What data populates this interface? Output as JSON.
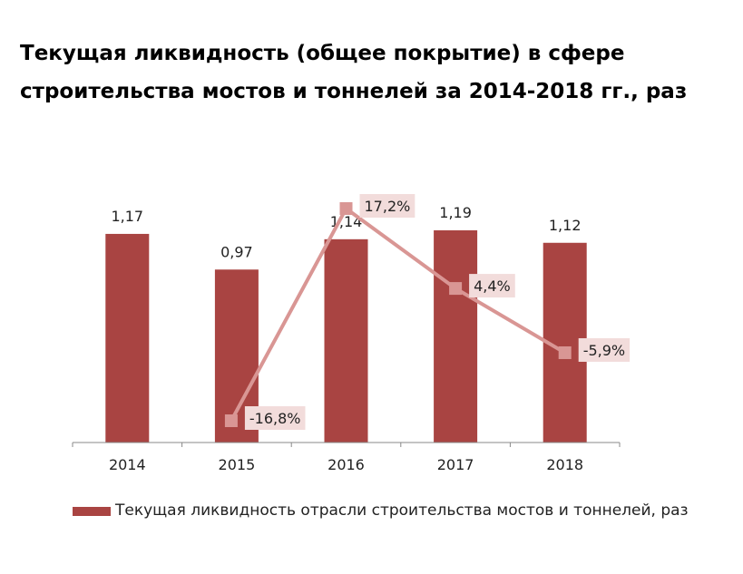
{
  "title": "Текущая ликвидность (общее покрытие) в сфере строительства мостов и тоннелей за 2014-2018 гг., раз",
  "chart_data": {
    "type": "bar",
    "categories": [
      "2014",
      "2015",
      "2016",
      "2017",
      "2018"
    ],
    "series": [
      {
        "name": "Текущая ликвидность отрасли строительства мостов и тоннелей, раз",
        "type": "bar",
        "values": [
          1.17,
          0.97,
          1.14,
          1.19,
          1.12
        ],
        "labels": [
          "1,17",
          "0,97",
          "1,14",
          "1,19",
          "1,12"
        ],
        "color": "#a94442"
      },
      {
        "type": "line",
        "points": [
          {
            "category": "2015",
            "value": -16.8,
            "label": "-16,8%"
          },
          {
            "category": "2016",
            "value": 17.2,
            "label": "17,2%"
          },
          {
            "category": "2017",
            "value": 4.4,
            "label": "4,4%"
          },
          {
            "category": "2018",
            "value": -5.9,
            "label": "-5,9%"
          }
        ],
        "color": "#d99694",
        "label_bg": "#f2dcdb"
      }
    ],
    "ylim": [
      0,
      1.19
    ],
    "line_ylim": [
      -16.8,
      17.2
    ],
    "legend_position": "bottom",
    "grid": false
  }
}
